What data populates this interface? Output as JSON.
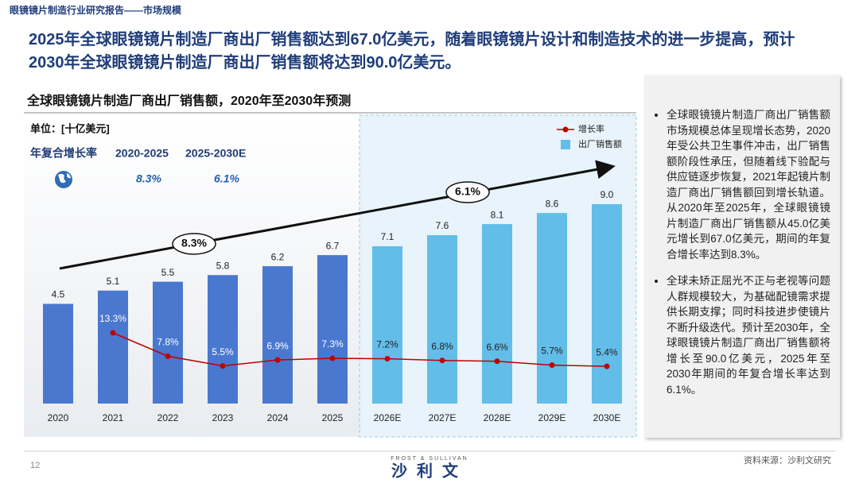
{
  "header": "眼镜镜片制造行业研究报告——市场规模",
  "headline": [
    "2025年全球眼镜镜片制造厂商出厂销售额达到67.0亿美元，随着眼镜镜片设计和制造技术的进一步提高，预计",
    "2030年全球眼镜镜片制造厂商出厂销售额将达到90.0亿美元。"
  ],
  "chart_data": {
    "type": "bar",
    "title": "全球眼镜镜片制造厂商出厂销售额，2020年至2030年预测",
    "unit": "单位：[十亿美元]",
    "cagr_title": "年复合增长率",
    "cagr": [
      {
        "period": "2020-2025",
        "value": 8.3,
        "label": "8.3%"
      },
      {
        "period": "2025-2030E",
        "value": 6.1,
        "label": "6.1%"
      }
    ],
    "categories": [
      "2020",
      "2021",
      "2022",
      "2023",
      "2024",
      "2025",
      "2026E",
      "2027E",
      "2028E",
      "2029E",
      "2030E"
    ],
    "series": [
      {
        "name": "出厂销售额",
        "colors": [
          "#4a78cf",
          "#4a78cf",
          "#4a78cf",
          "#4a78cf",
          "#4a78cf",
          "#4a78cf",
          "#62bde9",
          "#62bde9",
          "#62bde9",
          "#62bde9",
          "#62bde9"
        ],
        "values": [
          4.5,
          5.1,
          5.5,
          5.8,
          6.2,
          6.7,
          7.1,
          7.6,
          8.1,
          8.6,
          9.0
        ],
        "value_labels": [
          "4.5",
          "5.1",
          "5.5",
          "5.8",
          "6.2",
          "6.7",
          "7.1",
          "7.6",
          "8.1",
          "8.6",
          "9.0"
        ]
      },
      {
        "name": "增长率",
        "type": "line",
        "color": "#c00000",
        "values": [
          null,
          13.3,
          7.8,
          5.5,
          6.9,
          7.3,
          7.2,
          6.8,
          6.6,
          5.7,
          5.4
        ],
        "value_labels": [
          null,
          "13.3%",
          "7.8%",
          "5.5%",
          "6.9%",
          "7.3%",
          "7.2%",
          "6.8%",
          "6.6%",
          "5.7%",
          "5.4%"
        ]
      }
    ]
  },
  "notes": [
    "全球眼镜镜片制造厂商出厂销售额市场规模总体呈现增长态势，2020年受公共卫生事件冲击，出厂销售额阶段性承压，但随着线下验配与供应链逐步恢复，2021年起镜片制造厂商出厂销售额回到增长轨道。从2020年至2025年，全球眼镜镜片制造厂商出厂销售额从45.0亿美元增长到67.0亿美元，期间的年复合增长率达到8.3%。",
    "全球未矫正屈光不正与老视等问题人群规模较大，为基础配镜需求提供长期支撑；同时科技进步使镜片不断升级迭代。预计至2030年，全球眼镜镜片制造厂商出厂销售额将增长至90.0亿美元，2025年至2030年期间的年复合增长率达到6.1%。"
  ],
  "footer": {
    "page": "12",
    "logo_en": "FROST & SULLIVAN",
    "logo": "沙利文",
    "source": "资料来源：沙利文研究"
  }
}
